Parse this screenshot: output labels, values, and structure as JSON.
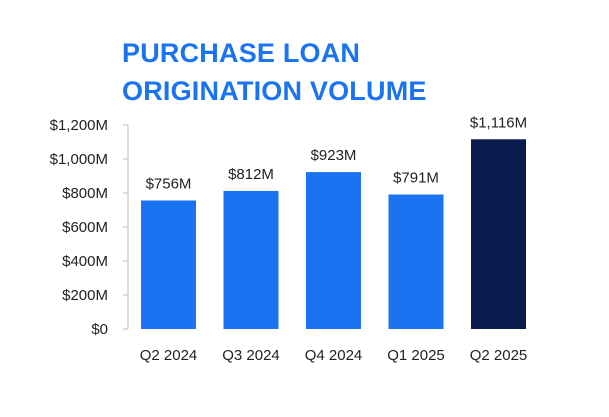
{
  "colors": {
    "title": "#1a73f0",
    "bar": "#1a73f0",
    "highlight_bar": "#0b1d4e",
    "axis": "#bbbbbb",
    "text": "#222222"
  },
  "chart_data": {
    "type": "bar",
    "title_lines": [
      "PURCHASE LOAN",
      "ORIGINATION VOLUME"
    ],
    "categories": [
      "Q2 2024",
      "Q3 2024",
      "Q4 2024",
      "Q1 2025",
      "Q2 2025"
    ],
    "values": [
      756,
      812,
      923,
      791,
      1116
    ],
    "value_labels": [
      "$756M",
      "$812M",
      "$923M",
      "$791M",
      "$1,116M"
    ],
    "highlight_index": 4,
    "unit": "$M",
    "xlabel": "",
    "ylabel": "",
    "ylim": [
      0,
      1200
    ],
    "y_ticks": [
      0,
      200,
      400,
      600,
      800,
      1000,
      1200
    ],
    "y_tick_labels": [
      "$0",
      "$200M",
      "$400M",
      "$600M",
      "$800M",
      "$1,000M",
      "$1,200M"
    ],
    "grid": false,
    "legend": "none"
  }
}
